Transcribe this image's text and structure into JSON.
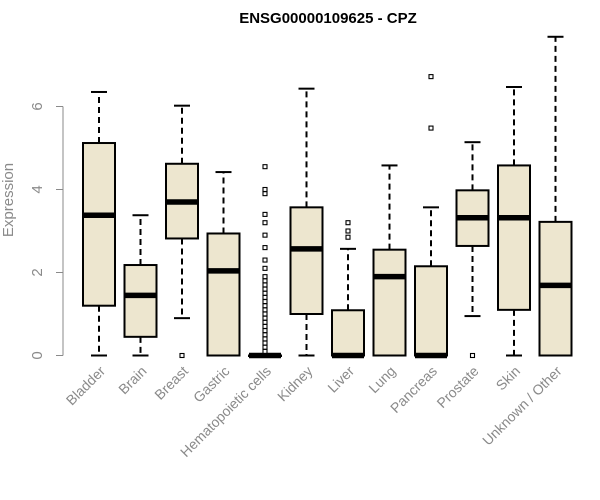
{
  "chart_data": {
    "type": "boxplot",
    "title": "ENSG00000109625 - CPZ",
    "ylabel": "Expression",
    "ylim": [
      0,
      7.8
    ],
    "yticks": [
      0,
      2,
      4,
      6
    ],
    "box_fill": "#ede6cf",
    "stroke": "#000000",
    "categories": [
      "Bladder",
      "Brain",
      "Breast",
      "Gastric",
      "Hematopoietic cells",
      "Kidney",
      "Liver",
      "Lung",
      "Pancreas",
      "Prostate",
      "Skin",
      "Unknown / Other"
    ],
    "boxes": [
      {
        "min": 0,
        "q1": 1.2,
        "median": 3.38,
        "q3": 5.12,
        "max": 6.35,
        "outliers": []
      },
      {
        "min": 0,
        "q1": 0.45,
        "median": 1.45,
        "q3": 2.18,
        "max": 3.38,
        "outliers": []
      },
      {
        "min": 0.9,
        "q1": 2.82,
        "median": 3.7,
        "q3": 4.62,
        "max": 6.02,
        "outliers": [
          0
        ]
      },
      {
        "min": 0,
        "q1": 0,
        "median": 2.04,
        "q3": 2.94,
        "max": 4.42,
        "outliers": []
      },
      {
        "min": 0,
        "q1": 0,
        "median": 0,
        "q3": 0,
        "max": 0,
        "outliers": [
          0.1,
          0.2,
          0.3,
          0.4,
          0.5,
          0.6,
          0.7,
          0.8,
          0.9,
          1.0,
          1.1,
          1.2,
          1.3,
          1.4,
          1.5,
          1.6,
          1.7,
          1.8,
          1.9,
          2.1,
          2.3,
          2.6,
          2.9,
          3.2,
          3.4,
          3.9,
          4.0,
          4.55
        ]
      },
      {
        "min": 0,
        "q1": 1.0,
        "median": 2.57,
        "q3": 3.57,
        "max": 6.43,
        "outliers": []
      },
      {
        "min": 0,
        "q1": 0,
        "median": 0,
        "q3": 1.09,
        "max": 2.57,
        "outliers": [
          2.85,
          3.0,
          3.2
        ]
      },
      {
        "min": 0,
        "q1": 0,
        "median": 1.9,
        "q3": 2.55,
        "max": 4.58,
        "outliers": []
      },
      {
        "min": 0,
        "q1": 0,
        "median": 0,
        "q3": 2.15,
        "max": 3.57,
        "outliers": [
          5.48,
          6.72
        ]
      },
      {
        "min": 0.95,
        "q1": 2.64,
        "median": 3.32,
        "q3": 3.98,
        "max": 5.14,
        "outliers": [
          0
        ]
      },
      {
        "min": 0,
        "q1": 1.1,
        "median": 3.32,
        "q3": 4.58,
        "max": 6.47,
        "outliers": []
      },
      {
        "min": 0,
        "q1": 0,
        "median": 1.69,
        "q3": 3.22,
        "max": 7.68,
        "outliers": []
      }
    ]
  }
}
